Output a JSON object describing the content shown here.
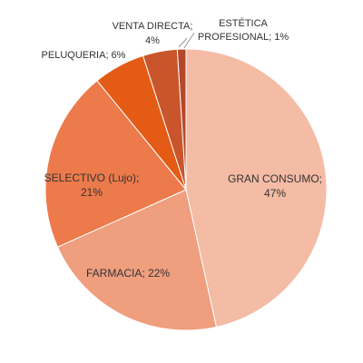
{
  "chart_data": {
    "type": "pie",
    "title": "",
    "slices": [
      {
        "name": "GRAN CONSUMO",
        "value": 47,
        "label": "47%",
        "color": "#f4bba5"
      },
      {
        "name": "FARMACIA",
        "value": 22,
        "label": "22%",
        "color": "#ef9e7e"
      },
      {
        "name": "SELECTIVO (Lujo)",
        "value": 21,
        "label": "21%",
        "color": "#ec7a4b"
      },
      {
        "name": "PELUQUERIA",
        "value": 6,
        "label": "6%",
        "color": "#e35b14"
      },
      {
        "name": "VENTA DIRECTA",
        "value": 4,
        "label": "4%",
        "color": "#c9552c"
      },
      {
        "name": "ESTÉTICA PROFESIONAL",
        "value": 1,
        "label": "1%",
        "color": "#b5482a"
      }
    ],
    "legend": "none"
  },
  "labels": {
    "gran_consumo_l1": "GRAN CONSUMO;",
    "gran_consumo_l2": "47%",
    "farmacia": "FARMACIA; 22%",
    "selectivo_l1": "SELECTIVO (Lujo);",
    "selectivo_l2": "21%",
    "peluqueria": "PELUQUERIA; 6%",
    "venta_l1": "VENTA DIRECTA;",
    "venta_l2": "4%",
    "estetica_l1": "ESTÉTICA",
    "estetica_l2": "PROFESIONAL; 1%"
  }
}
